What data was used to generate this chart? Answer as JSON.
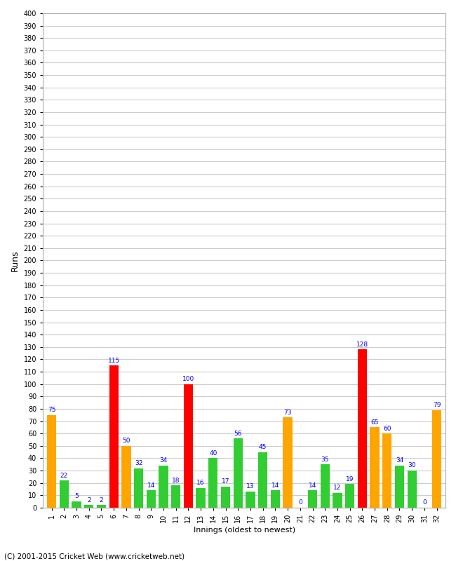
{
  "innings": [
    1,
    2,
    3,
    4,
    5,
    6,
    7,
    8,
    9,
    10,
    11,
    12,
    13,
    14,
    15,
    16,
    17,
    18,
    19,
    20,
    21,
    22,
    23,
    24,
    25,
    26,
    27,
    28,
    29,
    30,
    31,
    32
  ],
  "values": [
    75,
    22,
    5,
    2,
    2,
    115,
    50,
    32,
    14,
    34,
    18,
    100,
    16,
    40,
    17,
    56,
    13,
    45,
    14,
    73,
    0,
    14,
    35,
    12,
    19,
    128,
    65,
    60,
    34,
    30,
    0,
    79
  ],
  "colors": [
    "orange",
    "limegreen",
    "limegreen",
    "limegreen",
    "limegreen",
    "red",
    "orange",
    "limegreen",
    "limegreen",
    "limegreen",
    "limegreen",
    "red",
    "limegreen",
    "limegreen",
    "limegreen",
    "limegreen",
    "limegreen",
    "limegreen",
    "limegreen",
    "orange",
    "limegreen",
    "limegreen",
    "limegreen",
    "limegreen",
    "limegreen",
    "red",
    "orange",
    "orange",
    "limegreen",
    "limegreen",
    "limegreen",
    "orange"
  ],
  "ylabel": "Runs",
  "xlabel": "Innings (oldest to newest)",
  "ylim": [
    0,
    400
  ],
  "yticks": [
    0,
    10,
    20,
    30,
    40,
    50,
    60,
    70,
    80,
    90,
    100,
    110,
    120,
    130,
    140,
    150,
    160,
    170,
    180,
    190,
    200,
    210,
    220,
    230,
    240,
    250,
    260,
    270,
    280,
    290,
    300,
    310,
    320,
    330,
    340,
    350,
    360,
    370,
    380,
    390,
    400
  ],
  "background_color": "#ffffff",
  "grid_color": "#cccccc",
  "footer": "(C) 2001-2015 Cricket Web (www.cricketweb.net)"
}
